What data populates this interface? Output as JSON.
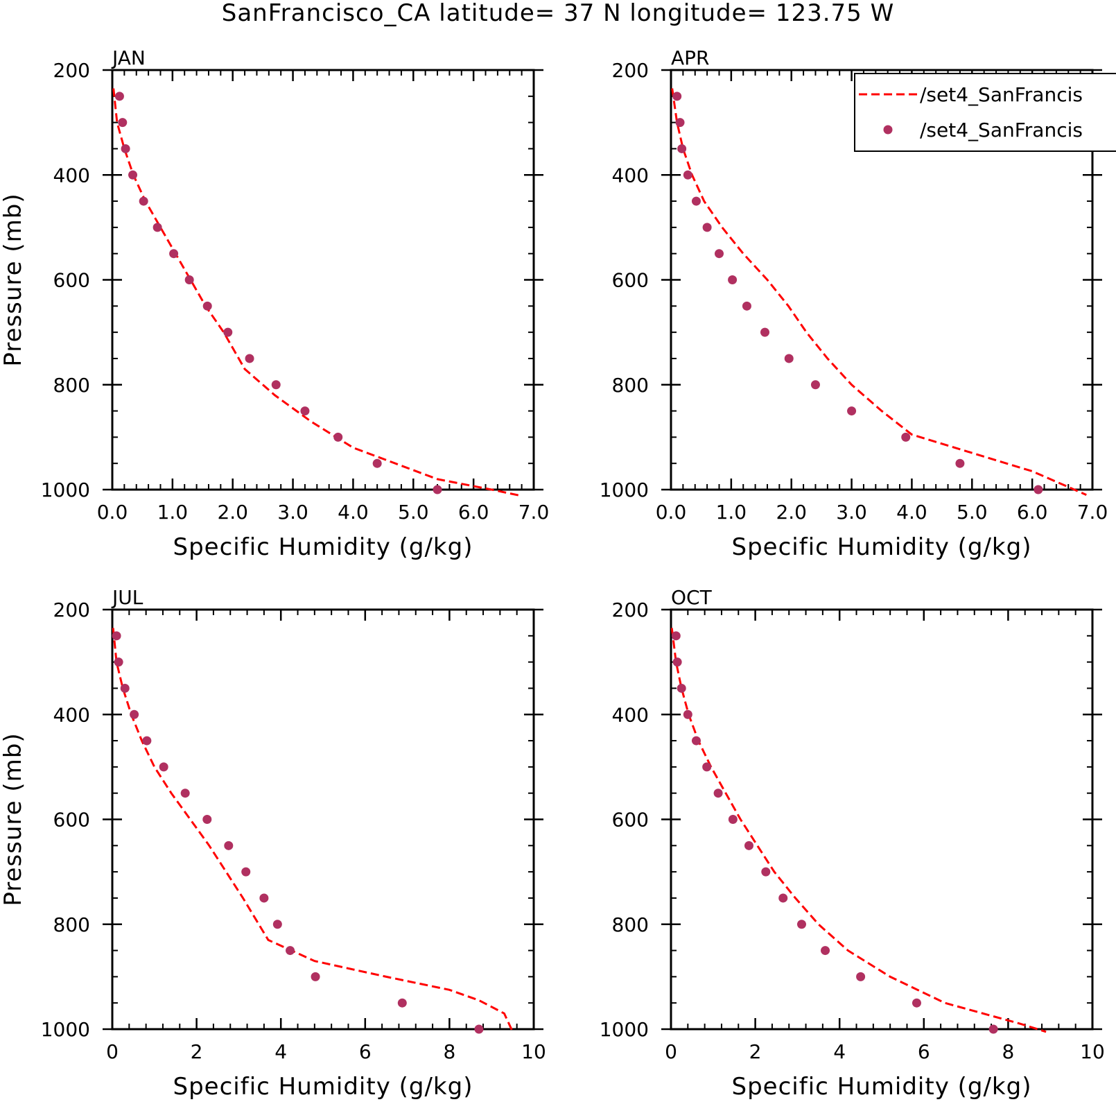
{
  "figure": {
    "title": "SanFrancisco_CA  latitude= 37 N longitude= 123.75 W"
  },
  "colors": {
    "line": "#ff0000",
    "points": "#b03060",
    "axes": "#000000"
  },
  "legend": {
    "placement": "top-right of APR panel",
    "items": [
      {
        "label": "/set4_SanFrancis",
        "marker": "dashed-line"
      },
      {
        "label": "/set4_SanFrancis",
        "marker": "dot"
      }
    ]
  },
  "chart_data": [
    {
      "type": "line",
      "panel_label": "JAN",
      "xlabel": "Specific Humidity (g/kg)",
      "ylabel": "Pressure (mb)",
      "xlim": [
        0,
        7
      ],
      "ylim": [
        200,
        1000
      ],
      "y_inverted": true,
      "xticks": [
        "0.0",
        "1.0",
        "2.0",
        "3.0",
        "4.0",
        "5.0",
        "6.0",
        "7.0"
      ],
      "yticks": [
        "200",
        "400",
        "600",
        "800",
        "1000"
      ],
      "series": [
        {
          "style": "dashed-line",
          "x": [
            0.02,
            0.08,
            0.2,
            0.35,
            0.55,
            0.8,
            1.05,
            1.3,
            1.55,
            1.85,
            2.2,
            2.7,
            3.3,
            4.0,
            5.4,
            6.3,
            6.8
          ],
          "y": [
            235,
            300,
            350,
            400,
            450,
            500,
            550,
            600,
            650,
            700,
            770,
            820,
            870,
            920,
            980,
            1000,
            1012
          ]
        },
        {
          "style": "dots",
          "x": [
            0.12,
            0.17,
            0.22,
            0.34,
            0.52,
            0.75,
            1.02,
            1.28,
            1.58,
            1.92,
            2.28,
            2.72,
            3.2,
            3.75,
            4.4,
            5.4
          ],
          "y": [
            250,
            300,
            350,
            400,
            450,
            500,
            550,
            600,
            650,
            700,
            750,
            800,
            850,
            900,
            950,
            1000
          ]
        }
      ]
    },
    {
      "type": "line",
      "panel_label": "APR",
      "xlabel": "Specific Humidity (g/kg)",
      "ylabel": "",
      "xlim": [
        0,
        7
      ],
      "ylim": [
        200,
        1000
      ],
      "y_inverted": true,
      "xticks": [
        "0.0",
        "1.0",
        "2.0",
        "3.0",
        "4.0",
        "5.0",
        "6.0",
        "7.0"
      ],
      "yticks": [
        "200",
        "400",
        "600",
        "800",
        "1000"
      ],
      "series": [
        {
          "style": "dashed-line",
          "x": [
            0.02,
            0.1,
            0.2,
            0.35,
            0.55,
            0.85,
            1.2,
            1.6,
            1.95,
            2.25,
            2.6,
            3.0,
            3.5,
            4.0,
            5.0,
            6.0,
            6.9
          ],
          "y": [
            235,
            300,
            350,
            400,
            450,
            500,
            550,
            600,
            650,
            700,
            750,
            800,
            850,
            895,
            930,
            965,
            1010
          ]
        },
        {
          "style": "dots",
          "x": [
            0.1,
            0.15,
            0.18,
            0.28,
            0.42,
            0.6,
            0.8,
            1.02,
            1.26,
            1.56,
            1.96,
            2.4,
            3.0,
            3.9,
            4.8,
            6.1
          ],
          "y": [
            250,
            300,
            350,
            400,
            450,
            500,
            550,
            600,
            650,
            700,
            750,
            800,
            850,
            900,
            950,
            1000
          ]
        }
      ]
    },
    {
      "type": "line",
      "panel_label": "JUL",
      "xlabel": "Specific Humidity (g/kg)",
      "ylabel": "Pressure (mb)",
      "xlim": [
        0,
        10
      ],
      "ylim": [
        200,
        1000
      ],
      "y_inverted": true,
      "xticks": [
        "0",
        "2",
        "4",
        "6",
        "8",
        "10"
      ],
      "yticks": [
        "200",
        "400",
        "600",
        "800",
        "1000"
      ],
      "series": [
        {
          "style": "dashed-line",
          "x": [
            0.02,
            0.1,
            0.25,
            0.45,
            0.7,
            1.0,
            1.4,
            1.85,
            2.3,
            2.7,
            3.1,
            3.7,
            4.8,
            6.5,
            8.0,
            8.7,
            9.3,
            9.5
          ],
          "y": [
            235,
            300,
            350,
            400,
            450,
            500,
            550,
            600,
            650,
            700,
            750,
            830,
            870,
            900,
            925,
            945,
            970,
            1005
          ]
        },
        {
          "style": "dots",
          "x": [
            0.1,
            0.15,
            0.3,
            0.52,
            0.82,
            1.22,
            1.73,
            2.25,
            2.76,
            3.17,
            3.6,
            3.92,
            4.22,
            4.82,
            6.88,
            8.7
          ],
          "y": [
            250,
            300,
            350,
            400,
            450,
            500,
            550,
            600,
            650,
            700,
            750,
            800,
            850,
            900,
            950,
            1000
          ]
        }
      ]
    },
    {
      "type": "line",
      "panel_label": "OCT",
      "xlabel": "Specific Humidity (g/kg)",
      "ylabel": "",
      "xlim": [
        0,
        10
      ],
      "ylim": [
        200,
        1000
      ],
      "y_inverted": true,
      "xticks": [
        "0",
        "2",
        "4",
        "6",
        "8",
        "10"
      ],
      "yticks": [
        "200",
        "400",
        "600",
        "800",
        "1000"
      ],
      "series": [
        {
          "style": "dashed-line",
          "x": [
            0.02,
            0.12,
            0.25,
            0.42,
            0.65,
            0.95,
            1.3,
            1.65,
            2.05,
            2.45,
            2.95,
            3.5,
            4.2,
            5.2,
            6.5,
            8.3,
            8.9
          ],
          "y": [
            235,
            300,
            350,
            400,
            450,
            500,
            550,
            600,
            650,
            700,
            750,
            800,
            850,
            900,
            950,
            990,
            1005
          ]
        },
        {
          "style": "dots",
          "x": [
            0.12,
            0.15,
            0.25,
            0.4,
            0.6,
            0.85,
            1.12,
            1.47,
            1.85,
            2.25,
            2.66,
            3.1,
            3.66,
            4.5,
            5.83,
            7.65
          ],
          "y": [
            250,
            300,
            350,
            400,
            450,
            500,
            550,
            600,
            650,
            700,
            750,
            800,
            850,
            900,
            950,
            1000
          ]
        }
      ]
    }
  ]
}
